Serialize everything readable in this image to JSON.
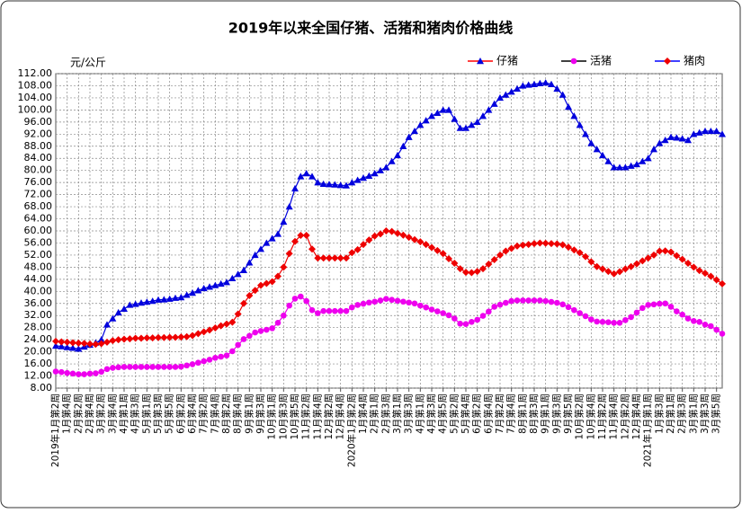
{
  "chart_data": {
    "type": "line",
    "title": "2019年以来全国仔猪、活猪和猪肉价格曲线",
    "y_label": "元/公斤",
    "grid": true,
    "legend": "top-right",
    "ylim": [
      8,
      112
    ],
    "yticks": [
      {
        "value": 8,
        "label": "8.00"
      },
      {
        "value": 12,
        "label": "12.00"
      },
      {
        "value": 16,
        "label": "16.00"
      },
      {
        "value": 20,
        "label": "20.00"
      },
      {
        "value": 24,
        "label": "24.00"
      },
      {
        "value": 28,
        "label": "28.00"
      },
      {
        "value": 32,
        "label": "32.00"
      },
      {
        "value": 36,
        "label": "36.00"
      },
      {
        "value": 40,
        "label": "40.00"
      },
      {
        "value": 44,
        "label": "44.00"
      },
      {
        "value": 48,
        "label": "48.00"
      },
      {
        "value": 52,
        "label": "52.00"
      },
      {
        "value": 56,
        "label": "56.00"
      },
      {
        "value": 60,
        "label": "60.00"
      },
      {
        "value": 64,
        "label": "64.00"
      },
      {
        "value": 68,
        "label": "68.00"
      },
      {
        "value": 72,
        "label": "72.00"
      },
      {
        "value": 76,
        "label": "76.00"
      },
      {
        "value": 80,
        "label": "80.00"
      },
      {
        "value": 84,
        "label": "84.00"
      },
      {
        "value": 88,
        "label": "88.00"
      },
      {
        "value": 92,
        "label": "92.00"
      },
      {
        "value": 96,
        "label": "96.00"
      },
      {
        "value": 100,
        "label": "100.00"
      },
      {
        "value": 104,
        "label": "104.00"
      },
      {
        "value": 108,
        "label": "108.00"
      },
      {
        "value": 112,
        "label": "112.00"
      }
    ],
    "categories": [
      "2019年1月第2周",
      null,
      "1月第4周",
      null,
      "2月第2周",
      null,
      "2月第4周",
      null,
      "3月第2周",
      null,
      "3月第4周",
      null,
      "4月第1周",
      null,
      "4月第3周",
      null,
      "5月第1周",
      null,
      "5月第3周",
      null,
      "5月第5周",
      null,
      "6月第2周",
      null,
      "6月第4周",
      null,
      "7月第2周",
      null,
      "7月第4周",
      null,
      "8月第2周",
      null,
      "8月第4周",
      null,
      "9月第1周",
      null,
      "9月第3周",
      null,
      "10月第1周",
      null,
      "10月第3周",
      null,
      "10月第5周",
      null,
      "11月第2周",
      null,
      "11月第4周",
      null,
      "12月第2周",
      null,
      "12月第4周",
      null,
      "2020年1月第2周",
      null,
      "1月第4周",
      null,
      "2月第1周",
      null,
      "2月第3周",
      null,
      "3月第1周",
      null,
      "3月第3周",
      null,
      "4月第1周",
      null,
      "4月第3周",
      null,
      "4月第5周",
      null,
      "5月第2周",
      null,
      "5月第4周",
      null,
      "6月第2周",
      null,
      "6月第4周",
      null,
      "7月第2周",
      null,
      "7月第4周",
      null,
      "8月第1周",
      null,
      "8月第3周",
      null,
      "9月第1周",
      null,
      "9月第3周",
      null,
      "9月第5周",
      null,
      "10月第2周",
      null,
      "10月第4周",
      null,
      "11月第2周",
      null,
      "11月第4周",
      null,
      "12月第2周",
      null,
      "12月第4周",
      null,
      "2021年1月第1周",
      null,
      "1月第3周",
      null,
      "2月第1周",
      null,
      "2月第3周",
      null,
      "3月第1周",
      null,
      "3月第3周",
      null,
      "3月第5周",
      null
    ],
    "series": [
      {
        "name": "仔猪",
        "color": "#0000dd",
        "legend_line_color": "#ff0000",
        "marker": "triangle",
        "values": [
          22,
          21.8,
          21.5,
          21.3,
          21,
          21.7,
          22.3,
          23,
          24,
          29,
          31,
          33,
          34.2,
          35.5,
          35.8,
          36.2,
          36.5,
          36.8,
          37.2,
          37.3,
          37.5,
          37.8,
          38,
          38.8,
          39.5,
          40.3,
          41,
          41.5,
          42,
          42.5,
          43,
          44.3,
          45.7,
          47,
          49.5,
          52,
          54,
          56,
          57.5,
          59,
          63,
          68,
          74,
          78,
          79,
          78,
          76,
          75.5,
          75.4,
          75.3,
          75.1,
          75,
          76,
          76.8,
          77.5,
          78.2,
          79,
          80,
          81,
          83,
          85,
          88,
          91,
          93,
          95,
          96.5,
          98,
          99,
          100,
          100,
          97,
          94,
          94,
          95,
          96,
          98,
          100,
          102,
          104,
          105,
          106,
          107,
          108,
          108.3,
          108.5,
          108.8,
          109,
          108.5,
          107,
          105,
          101,
          98,
          95,
          92,
          89,
          87,
          85,
          83,
          81,
          81,
          81,
          81.5,
          82,
          83,
          84,
          87,
          89,
          90,
          91,
          90.8,
          90.5,
          90,
          92,
          92.5,
          93,
          93,
          93,
          92
        ]
      },
      {
        "name": "活猪",
        "color": "#ee00ee",
        "legend_line_color": "#000000",
        "marker": "circle",
        "values": [
          13.5,
          13.3,
          13,
          12.8,
          12.6,
          12.6,
          12.8,
          12.9,
          13.4,
          14.3,
          14.7,
          14.9,
          15,
          15,
          15,
          15,
          15,
          15,
          15,
          15,
          15,
          15,
          15.1,
          15.5,
          15.9,
          16.4,
          16.9,
          17.4,
          18,
          18.4,
          18.8,
          20.2,
          22.3,
          24.2,
          25.3,
          26.4,
          26.9,
          27.3,
          27.8,
          29.6,
          32,
          35.3,
          37.6,
          38.3,
          36.8,
          33.8,
          32.8,
          33.5,
          33.5,
          33.5,
          33.5,
          33.5,
          34.7,
          35.5,
          35.9,
          36.3,
          36.6,
          37,
          37.5,
          37.2,
          36.9,
          36.6,
          36.3,
          36,
          35.3,
          34.7,
          34,
          33.4,
          32.8,
          32.1,
          31,
          29.3,
          29.2,
          29.9,
          30.6,
          31.9,
          33.3,
          34.9,
          35.6,
          36.2,
          36.8,
          37,
          37,
          37,
          37,
          37,
          36.8,
          36.5,
          36.2,
          35.7,
          34.8,
          33.8,
          32.8,
          31.8,
          30.7,
          30,
          29.9,
          29.8,
          29.6,
          29.6,
          30.5,
          31.5,
          33,
          34.5,
          35.5,
          35.7,
          35.9,
          36,
          34.9,
          33.4,
          32.3,
          31,
          30.2,
          29.9,
          29,
          28.5,
          27.3,
          26
        ]
      },
      {
        "name": "猪肉",
        "color": "#ee0000",
        "legend_line_color": "#0000ff",
        "marker": "diamond",
        "values": [
          23.5,
          23.3,
          23.2,
          23,
          22.9,
          22.8,
          22.6,
          22.5,
          22.7,
          23.2,
          23.7,
          24,
          24.2,
          24.3,
          24.5,
          24.5,
          24.6,
          24.6,
          24.7,
          24.7,
          24.8,
          24.8,
          24.9,
          25,
          25.4,
          26,
          26.6,
          27.2,
          27.9,
          28.6,
          29.2,
          29.8,
          32.5,
          36,
          38.6,
          40.3,
          42,
          42.6,
          43.2,
          45,
          48,
          52.5,
          56.5,
          58.5,
          58.5,
          54,
          51,
          51,
          51,
          51,
          51,
          51,
          52.8,
          53.8,
          55.5,
          57,
          58.3,
          59,
          60,
          59.8,
          59.2,
          58.6,
          57.9,
          57.1,
          56.4,
          55.5,
          54.5,
          53.5,
          52.5,
          50.8,
          49.3,
          47.5,
          46.3,
          46.2,
          46.6,
          47.5,
          49,
          50.5,
          52,
          53.3,
          54.2,
          55,
          55.3,
          55.5,
          55.8,
          56,
          55.9,
          55.8,
          55.7,
          55.4,
          54.6,
          53.7,
          52.8,
          51.5,
          49.8,
          48.2,
          47.4,
          46.6,
          45.8,
          46.5,
          47.4,
          48.2,
          49.1,
          50.1,
          51,
          52,
          53.3,
          53.4,
          53,
          51.8,
          50.6,
          49.3,
          48,
          46.9,
          46,
          45,
          43.8,
          42.5
        ]
      }
    ]
  }
}
